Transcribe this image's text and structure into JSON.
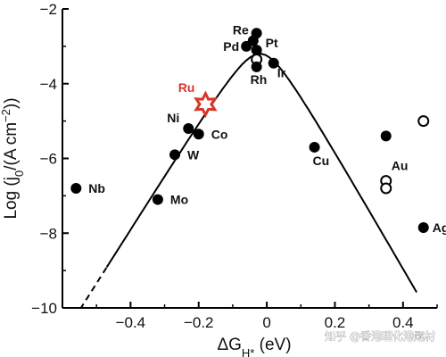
{
  "chart_data": {
    "type": "scatter",
    "title": "",
    "xlabel": "ΔG",
    "xlabel_sub": "H*",
    "xlabel_unit": " (eV)",
    "ylabel": "Log (j",
    "ylabel_sub": "0",
    "ylabel_unit": "/(A cm",
    "ylabel_sup": "−2",
    "ylabel_close": "))",
    "xlim": [
      -0.6,
      0.5
    ],
    "ylim": [
      -10,
      -2
    ],
    "x_ticks": [
      -0.4,
      -0.2,
      0.0,
      0.2,
      0.4
    ],
    "x_tick_labels": [
      "−0.4",
      "−0.2",
      "0",
      "0.2",
      "0.4"
    ],
    "y_ticks": [
      -10,
      -8,
      -6,
      -4,
      -2
    ],
    "y_tick_labels": [
      "−10",
      "−8",
      "−6",
      "−4",
      "−2"
    ],
    "grid": false,
    "highlight_color": "#d9362b",
    "points": [
      {
        "label": "Nb",
        "x": -0.56,
        "y": -6.8,
        "marker": "filled"
      },
      {
        "label": "Mo",
        "x": -0.32,
        "y": -7.1,
        "marker": "filled"
      },
      {
        "label": "W",
        "x": -0.27,
        "y": -5.9,
        "marker": "filled"
      },
      {
        "label": "Ni",
        "x": -0.23,
        "y": -5.2,
        "marker": "filled"
      },
      {
        "label": "Co",
        "x": -0.2,
        "y": -5.35,
        "marker": "filled"
      },
      {
        "label": "Ru",
        "x": -0.18,
        "y": -4.55,
        "marker": "star"
      },
      {
        "label": "Pd",
        "x": -0.06,
        "y": -3.0,
        "marker": "filled"
      },
      {
        "label": "Re",
        "x": -0.04,
        "y": -2.85,
        "marker": "filled"
      },
      {
        "label": "Pt",
        "x": -0.03,
        "y": -2.65,
        "marker": "filled"
      },
      {
        "label": "Pt",
        "x": -0.03,
        "y": -3.1,
        "marker": "filled"
      },
      {
        "label": "Rh",
        "x": -0.03,
        "y": -3.35,
        "marker": "open"
      },
      {
        "label": "Rh",
        "x": -0.03,
        "y": -3.55,
        "marker": "filled"
      },
      {
        "label": "Ir",
        "x": 0.02,
        "y": -3.45,
        "marker": "filled"
      },
      {
        "label": "Cu",
        "x": 0.14,
        "y": -5.7,
        "marker": "filled"
      },
      {
        "label": "Au",
        "x": 0.35,
        "y": -5.4,
        "marker": "filled"
      },
      {
        "label": "Au",
        "x": 0.46,
        "y": -5.0,
        "marker": "open"
      },
      {
        "label": "Au",
        "x": 0.35,
        "y": -6.6,
        "marker": "open"
      },
      {
        "label": "Au",
        "x": 0.35,
        "y": -6.8,
        "marker": "open"
      },
      {
        "label": "Ag",
        "x": 0.46,
        "y": -7.85,
        "marker": "filled"
      }
    ],
    "labels": [
      {
        "text": "Nb",
        "for_x": -0.56,
        "for_y": -6.8
      },
      {
        "text": "Mo",
        "for_x": -0.32,
        "for_y": -7.1
      },
      {
        "text": "W",
        "for_x": -0.27,
        "for_y": -5.9
      },
      {
        "text": "Ni",
        "for_x": -0.23,
        "for_y": -5.2
      },
      {
        "text": "Co",
        "for_x": -0.2,
        "for_y": -5.35
      },
      {
        "text": "Ru",
        "for_x": -0.18,
        "for_y": -4.55,
        "highlight": true
      },
      {
        "text": "Pd",
        "for_x": -0.06,
        "for_y": -3.0
      },
      {
        "text": "Re",
        "for_x": -0.04,
        "for_y": -2.85
      },
      {
        "text": "Pt",
        "for_x": -0.03,
        "for_y": -3.1
      },
      {
        "text": "Rh",
        "for_x": -0.03,
        "for_y": -3.55
      },
      {
        "text": "Ir",
        "for_x": 0.02,
        "for_y": -3.45
      },
      {
        "text": "Cu",
        "for_x": 0.14,
        "for_y": -5.7
      },
      {
        "text": "Au",
        "for_x": 0.35,
        "for_y": -6.6
      },
      {
        "text": "Ag",
        "for_x": 0.46,
        "for_y": -7.85
      }
    ],
    "volcano_curve": {
      "peak_x": -0.02,
      "peak_y": -3.2,
      "left_slope": 14.5,
      "right_slope": 15.8,
      "solid_from_x": -0.47,
      "dashed_from_x": -0.55,
      "to_x": 0.44
    }
  },
  "watermark": "知乎 @香港理化港题材"
}
